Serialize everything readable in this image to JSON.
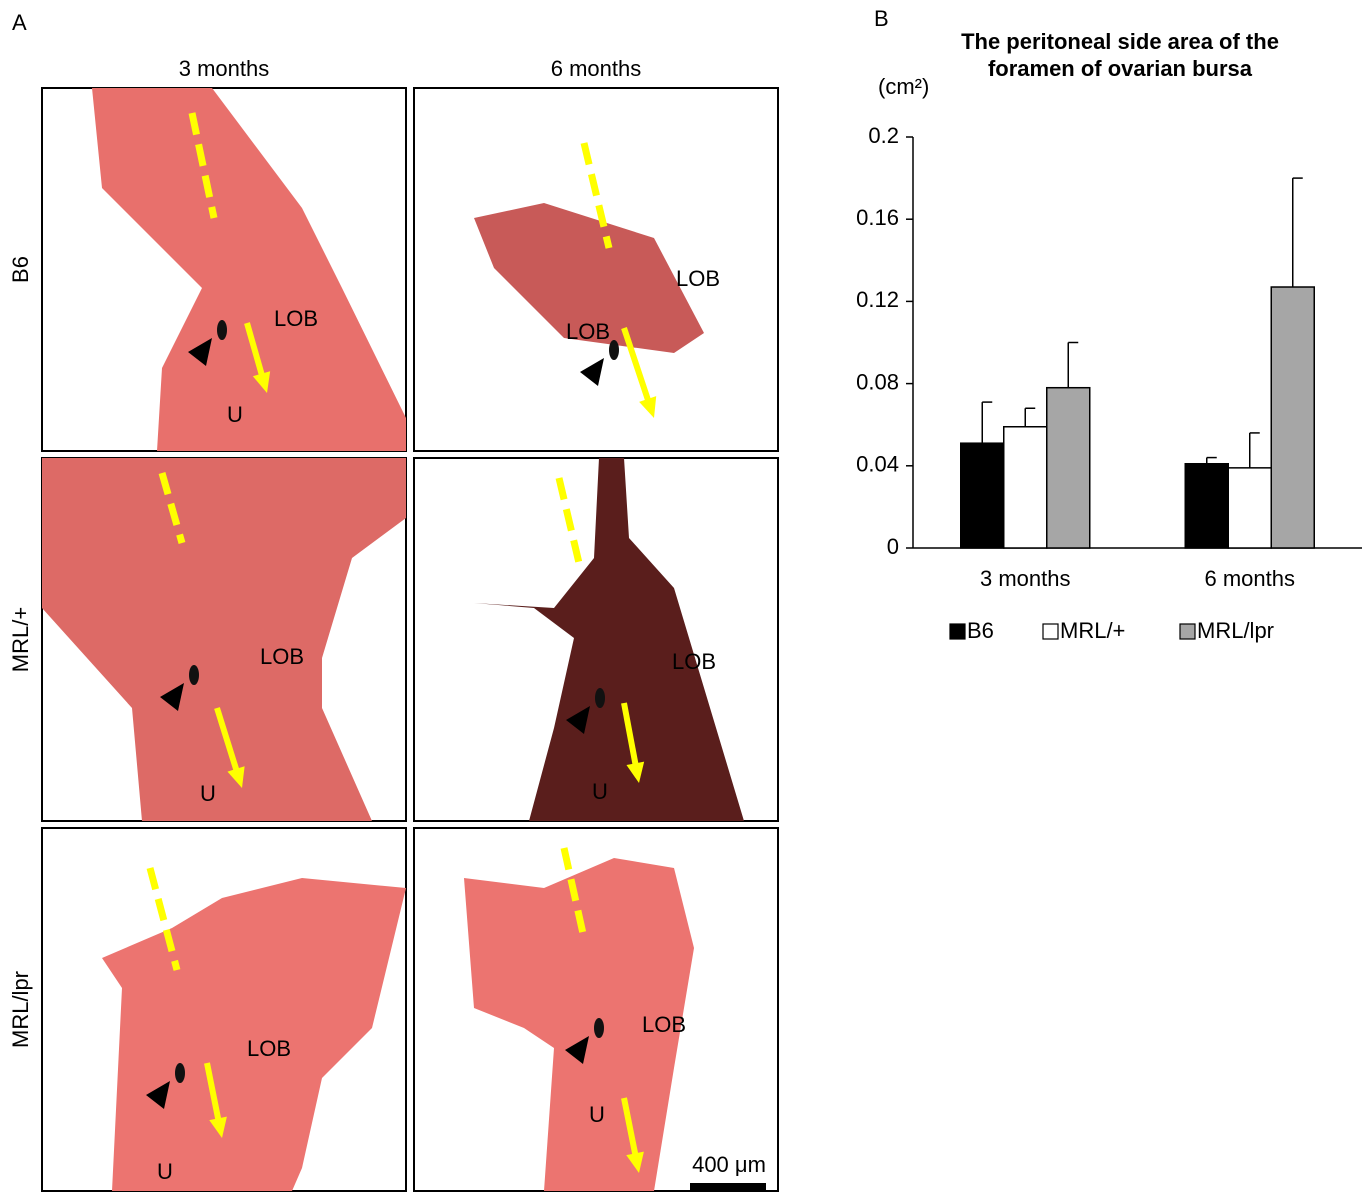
{
  "panel_a": {
    "label": "A",
    "columns": [
      "3 months",
      "6 months"
    ],
    "rows": [
      "B6",
      "MRL/+",
      "MRL/lpr"
    ],
    "panels": [
      [
        "LOB",
        "U"
      ],
      [
        "LOB",
        "LOB"
      ],
      [
        "LOB",
        "U"
      ],
      [
        "LOB",
        "U"
      ],
      [
        "LOB",
        "U"
      ],
      [
        "LOB",
        "U"
      ]
    ],
    "scale_bar": "400 μm"
  },
  "panel_b_label": "B",
  "chart_data": {
    "type": "bar",
    "title": "The peritoneal side area of the foramen of ovarian bursa",
    "y_label": "(cm²)",
    "categories": [
      "3 months",
      "6 months"
    ],
    "series": [
      {
        "name": "B6",
        "color": "#000000",
        "values": [
          0.051,
          0.041
        ],
        "errors": [
          0.02,
          0.003
        ]
      },
      {
        "name": "MRL/+",
        "color": "#ffffff",
        "values": [
          0.059,
          0.039
        ],
        "errors": [
          0.009,
          0.017
        ]
      },
      {
        "name": "MRL/lpr",
        "color": "#a6a6a6",
        "values": [
          0.078,
          0.127
        ],
        "errors": [
          0.022,
          0.053
        ]
      }
    ],
    "ylim": [
      0,
      0.2
    ],
    "yticks": [
      0,
      0.04,
      0.08,
      0.12,
      0.16,
      0.2
    ],
    "grid": false
  }
}
